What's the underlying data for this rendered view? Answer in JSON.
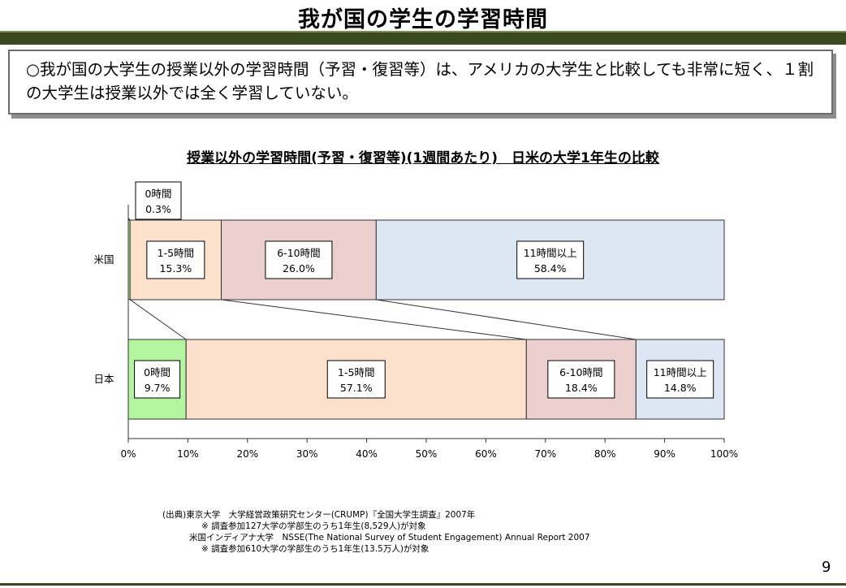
{
  "page": {
    "title": "我が国の学生の学習時間",
    "summary": "○我が国の大学生の授業以外の学習時間（予習・復習等）は、アメリカの大学生と比較しても非常に短く、１割の大学生は授業以外では全く学習していない。",
    "page_number": "9"
  },
  "chart_data": {
    "type": "bar",
    "orientation": "horizontal-stacked-100",
    "title": "授業以外の学習時間(予習・復習等)(1週間あたり)　日米の大学1年生の比較",
    "categories": [
      "米国",
      "日本"
    ],
    "series": [
      {
        "name": "0時間",
        "values": [
          0.3,
          9.7
        ],
        "labels": [
          "0.3%",
          "9.7%"
        ],
        "color": "#b3f59f"
      },
      {
        "name": "1-5時間",
        "values": [
          15.3,
          57.1
        ],
        "labels": [
          "15.3%",
          "57.1%"
        ],
        "color": "#fbe1cb"
      },
      {
        "name": "6-10時間",
        "values": [
          26.0,
          18.4
        ],
        "labels": [
          "26.0%",
          "18.4%"
        ],
        "color": "#eccfcf"
      },
      {
        "name": "11時間以上",
        "values": [
          58.4,
          14.8
        ],
        "labels": [
          "58.4%",
          "14.8%"
        ],
        "color": "#dde7f4"
      }
    ],
    "xlim": [
      0,
      100
    ],
    "xticks": [
      "0%",
      "10%",
      "20%",
      "30%",
      "40%",
      "50%",
      "60%",
      "70%",
      "80%",
      "90%",
      "100%"
    ],
    "grid": false,
    "legend": "none"
  },
  "source": {
    "line1": "(出典)東京大学　大学経営政策研究センター(CRUMP)『全国大学生調査』2007年",
    "line2": "※ 調査参加127大学の学部生のうち1年生(8,529人)が対象",
    "line3": "米国インディアナ大学　NSSE(The National Survey of Student Engagement) Annual Report 2007",
    "line4": "※ 調査参加610大学の学部生のうち1年生(13.5万人)が対象"
  }
}
